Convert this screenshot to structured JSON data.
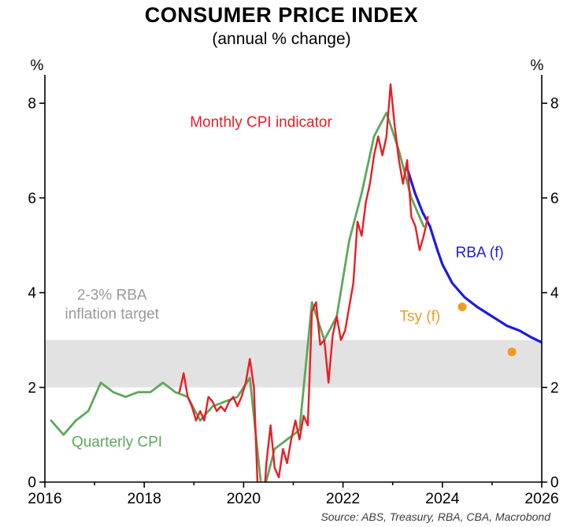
{
  "footer": {
    "source": "Source: ABS, Treasury, RBA, CBA, Macrobond"
  },
  "chart_data": {
    "type": "line",
    "title": "CONSUMER PRICE INDEX",
    "subtitle": "(annual % change)",
    "unit_label": "%",
    "xlim": [
      2016,
      2026
    ],
    "ylim": [
      0,
      8.6
    ],
    "xticks_labeled": [
      2016,
      2018,
      2020,
      2022,
      2024,
      2026
    ],
    "xticks_minor": [
      2017,
      2019,
      2021,
      2023,
      2025
    ],
    "yticks": [
      0,
      2,
      4,
      6,
      8
    ],
    "grid": "off",
    "band": {
      "from": 2,
      "to": 3,
      "color": "#e2e2e2"
    },
    "series": [
      {
        "name": "RBA (f)",
        "color": "#1b1be6",
        "width": 3.2,
        "points": [
          [
            2023.3,
            6.6
          ],
          [
            2023.45,
            6.1
          ],
          [
            2023.6,
            5.7
          ],
          [
            2023.75,
            5.4
          ],
          [
            2023.9,
            4.9
          ],
          [
            2024.0,
            4.6
          ],
          [
            2024.2,
            4.2
          ],
          [
            2024.45,
            3.9
          ],
          [
            2024.7,
            3.7
          ],
          [
            2025.0,
            3.5
          ],
          [
            2025.3,
            3.3
          ],
          [
            2025.55,
            3.2
          ],
          [
            2025.8,
            3.05
          ],
          [
            2026.0,
            2.95
          ]
        ]
      },
      {
        "name": "Quarterly CPI",
        "color": "#5ca85c",
        "width": 2.8,
        "points": [
          [
            2016.125,
            1.3
          ],
          [
            2016.375,
            1.0
          ],
          [
            2016.625,
            1.3
          ],
          [
            2016.875,
            1.5
          ],
          [
            2017.125,
            2.1
          ],
          [
            2017.375,
            1.9
          ],
          [
            2017.625,
            1.8
          ],
          [
            2017.875,
            1.9
          ],
          [
            2018.125,
            1.9
          ],
          [
            2018.375,
            2.1
          ],
          [
            2018.625,
            1.9
          ],
          [
            2018.875,
            1.8
          ],
          [
            2019.125,
            1.3
          ],
          [
            2019.375,
            1.6
          ],
          [
            2019.625,
            1.7
          ],
          [
            2019.875,
            1.8
          ],
          [
            2020.125,
            2.2
          ],
          [
            2020.375,
            -0.3
          ],
          [
            2020.625,
            0.7
          ],
          [
            2020.875,
            0.9
          ],
          [
            2021.125,
            1.1
          ],
          [
            2021.375,
            3.8
          ],
          [
            2021.625,
            3.0
          ],
          [
            2021.875,
            3.5
          ],
          [
            2022.125,
            5.1
          ],
          [
            2022.375,
            6.1
          ],
          [
            2022.625,
            7.3
          ],
          [
            2022.875,
            7.8
          ],
          [
            2023.125,
            7.0
          ],
          [
            2023.375,
            6.0
          ],
          [
            2023.625,
            5.4
          ]
        ]
      },
      {
        "name": "Monthly CPI indicator",
        "color": "#ed1c24",
        "width": 2.4,
        "points": [
          [
            2018.708,
            1.9
          ],
          [
            2018.792,
            2.3
          ],
          [
            2018.875,
            1.8
          ],
          [
            2018.958,
            1.6
          ],
          [
            2019.042,
            1.3
          ],
          [
            2019.125,
            1.5
          ],
          [
            2019.208,
            1.3
          ],
          [
            2019.292,
            1.8
          ],
          [
            2019.375,
            1.7
          ],
          [
            2019.458,
            1.5
          ],
          [
            2019.542,
            1.6
          ],
          [
            2019.625,
            1.5
          ],
          [
            2019.708,
            1.7
          ],
          [
            2019.792,
            1.8
          ],
          [
            2019.875,
            1.6
          ],
          [
            2019.958,
            1.8
          ],
          [
            2020.042,
            2.1
          ],
          [
            2020.125,
            2.6
          ],
          [
            2020.208,
            2.0
          ],
          [
            2020.292,
            -0.4
          ],
          [
            2020.375,
            -0.9
          ],
          [
            2020.458,
            0.4
          ],
          [
            2020.542,
            1.2
          ],
          [
            2020.625,
            0.3
          ],
          [
            2020.708,
            0.1
          ],
          [
            2020.792,
            0.7
          ],
          [
            2020.875,
            0.4
          ],
          [
            2020.958,
            0.9
          ],
          [
            2021.042,
            1.3
          ],
          [
            2021.125,
            0.9
          ],
          [
            2021.208,
            1.4
          ],
          [
            2021.292,
            1.2
          ],
          [
            2021.375,
            3.6
          ],
          [
            2021.458,
            3.8
          ],
          [
            2021.542,
            2.9
          ],
          [
            2021.625,
            3.0
          ],
          [
            2021.708,
            2.1
          ],
          [
            2021.792,
            3.1
          ],
          [
            2021.875,
            3.5
          ],
          [
            2021.958,
            3.0
          ],
          [
            2022.042,
            3.2
          ],
          [
            2022.125,
            3.7
          ],
          [
            2022.208,
            4.2
          ],
          [
            2022.292,
            5.5
          ],
          [
            2022.375,
            5.2
          ],
          [
            2022.458,
            5.9
          ],
          [
            2022.542,
            6.3
          ],
          [
            2022.625,
            6.9
          ],
          [
            2022.708,
            7.3
          ],
          [
            2022.792,
            6.9
          ],
          [
            2022.875,
            7.3
          ],
          [
            2022.958,
            8.4
          ],
          [
            2023.042,
            7.5
          ],
          [
            2023.125,
            6.8
          ],
          [
            2023.208,
            6.3
          ],
          [
            2023.292,
            6.8
          ],
          [
            2023.375,
            5.6
          ],
          [
            2023.458,
            5.4
          ],
          [
            2023.542,
            4.9
          ],
          [
            2023.625,
            5.2
          ],
          [
            2023.708,
            5.6
          ]
        ]
      }
    ],
    "scatter": [
      {
        "name": "Tsy (f)",
        "color": "#ef9c23",
        "radius": 5.5,
        "points": [
          [
            2024.4,
            3.7
          ],
          [
            2025.4,
            2.75
          ]
        ]
      }
    ],
    "annotations": [
      {
        "id": "monthly-cpi-indicator-label",
        "text": "Monthly CPI indicator",
        "x": 2020.35,
        "y": 7.5,
        "color": "#ed1c24",
        "size": 19
      },
      {
        "id": "rba-target-label-line1",
        "text": "2-3% RBA",
        "x": 2017.35,
        "y": 3.85,
        "color": "#9a9a9a",
        "size": 19
      },
      {
        "id": "rba-target-label-line2",
        "text": "inflation target",
        "x": 2017.35,
        "y": 3.45,
        "color": "#9a9a9a",
        "size": 19
      },
      {
        "id": "quarterly-cpi-label",
        "text": "Quarterly CPI",
        "x": 2017.45,
        "y": 0.75,
        "color": "#5ca85c",
        "size": 19
      },
      {
        "id": "rba-forecast-label",
        "text": "RBA (f)",
        "x": 2024.75,
        "y": 4.75,
        "color": "#1b1be6",
        "size": 19
      },
      {
        "id": "tsy-forecast-label",
        "text": "Tsy (f)",
        "x": 2023.55,
        "y": 3.4,
        "color": "#ef9c23",
        "size": 19
      }
    ]
  }
}
